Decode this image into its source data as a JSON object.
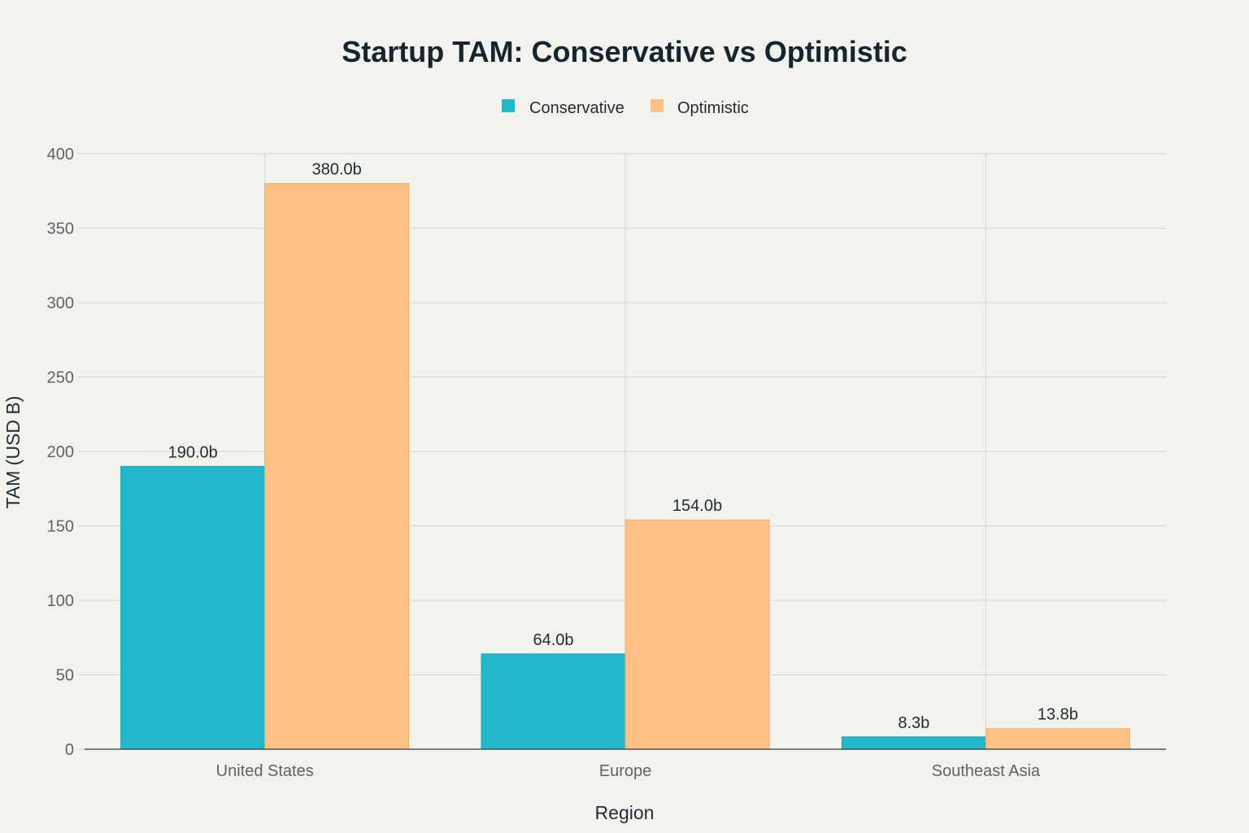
{
  "chart_data": {
    "type": "bar",
    "title": "Startup TAM: Conservative vs Optimistic",
    "xlabel": "Region",
    "ylabel": "TAM (USD B)",
    "categories": [
      "United States",
      "Europe",
      "Southeast Asia"
    ],
    "series": [
      {
        "name": "Conservative",
        "color": "#21b8cc",
        "values": [
          190.0,
          64.0,
          8.3
        ],
        "labels": [
          "190.0b",
          "64.0b",
          "8.3b"
        ]
      },
      {
        "name": "Optimistic",
        "color": "#ffc085",
        "values": [
          380.0,
          154.0,
          13.8
        ],
        "labels": [
          "380.0b",
          "154.0b",
          "13.8b"
        ]
      }
    ],
    "ylim": [
      0,
      400
    ],
    "yticks": [
      0,
      50,
      100,
      150,
      200,
      250,
      300,
      350,
      400
    ],
    "ytick_labels": [
      "0",
      "50",
      "100",
      "150",
      "200",
      "250",
      "300",
      "350",
      "400"
    ],
    "grid": true,
    "legend_position": "top-center"
  }
}
